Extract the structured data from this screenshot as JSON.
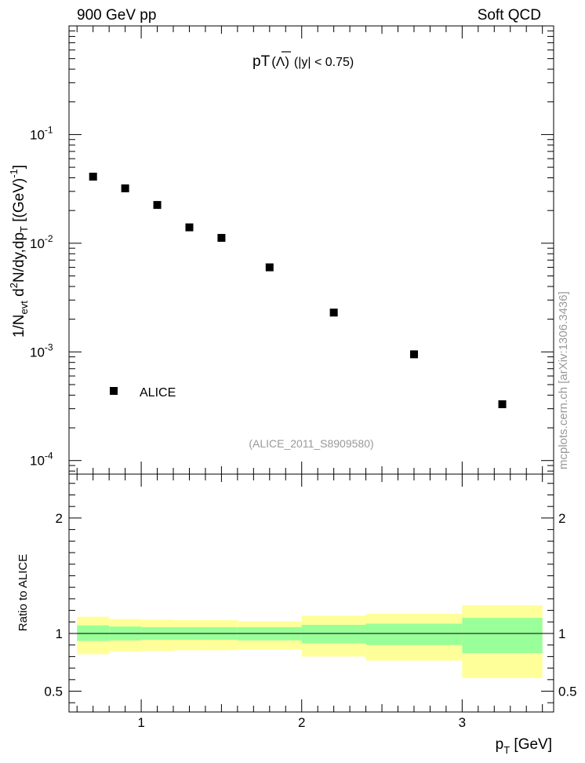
{
  "header": {
    "left_label": "900 GeV pp",
    "right_label": "Soft QCD"
  },
  "side_note": "mcplots.cern.ch [arXiv:1306.3436]",
  "chart_data": [
    {
      "type": "scatter",
      "title_main": "pT",
      "title_particle": "Λ",
      "title_cut": "(|y| < 0.75)",
      "ylabel": "1/N_evt d²N/dy,dp_T [(GeV)^-1]",
      "ylabel_parts": {
        "a": "1/N",
        "b": "evt",
        "c": " d",
        "d": "2",
        "e": "N/dy,dp",
        "f": "T",
        "g": " [(GeV)",
        "h": "-1",
        "i": "]"
      },
      "yscale": "log",
      "xlim": [
        0.55,
        3.57
      ],
      "ylim": [
        7.5e-05,
        1.0
      ],
      "y_ticks": [
        {
          "value": 0.1,
          "base": "10",
          "exp": "-1"
        },
        {
          "value": 0.01,
          "base": "10",
          "exp": "-2"
        },
        {
          "value": 0.001,
          "base": "10",
          "exp": "-3"
        },
        {
          "value": 0.0001,
          "base": "10",
          "exp": "-4"
        }
      ],
      "series": [
        {
          "name": "ALICE",
          "x": [
            0.7,
            0.9,
            1.1,
            1.3,
            1.5,
            1.8,
            2.2,
            2.7,
            3.25
          ],
          "y": [
            0.041,
            0.032,
            0.0225,
            0.014,
            0.0112,
            0.006,
            0.0023,
            0.00095,
            0.00033
          ]
        }
      ],
      "legend": {
        "label": "ALICE",
        "placement": "bottom-left"
      },
      "annotation": "(ALICE_2011_S8909580)",
      "annotation_color": "#999999"
    },
    {
      "type": "area",
      "ylabel": "Ratio to ALICE",
      "xlabel": "p_T [GeV]",
      "xlabel_parts": {
        "a": "p",
        "b": "T",
        "c": " [GeV]"
      },
      "xlim": [
        0.55,
        3.57
      ],
      "ylim": [
        0.32,
        2.38
      ],
      "x_ticks": [
        {
          "value": 1,
          "label": "1"
        },
        {
          "value": 2,
          "label": "2"
        },
        {
          "value": 3,
          "label": "3"
        }
      ],
      "y_ticks": [
        {
          "value": 0.5,
          "label": "0.5"
        },
        {
          "value": 1,
          "label": "1"
        },
        {
          "value": 2,
          "label": "2"
        }
      ],
      "reference_line": 1.0,
      "bands": [
        {
          "x0": 0.6,
          "x1": 0.8,
          "stat_lo": 0.935,
          "stat_hi": 1.07,
          "sys_lo": 0.82,
          "sys_hi": 1.145
        },
        {
          "x0": 0.8,
          "x1": 1.0,
          "stat_lo": 0.94,
          "stat_hi": 1.06,
          "sys_lo": 0.845,
          "sys_hi": 1.125
        },
        {
          "x0": 1.0,
          "x1": 1.2,
          "stat_lo": 0.945,
          "stat_hi": 1.055,
          "sys_lo": 0.85,
          "sys_hi": 1.12
        },
        {
          "x0": 1.2,
          "x1": 1.4,
          "stat_lo": 0.945,
          "stat_hi": 1.055,
          "sys_lo": 0.855,
          "sys_hi": 1.115
        },
        {
          "x0": 1.4,
          "x1": 1.6,
          "stat_lo": 0.945,
          "stat_hi": 1.055,
          "sys_lo": 0.855,
          "sys_hi": 1.115
        },
        {
          "x0": 1.6,
          "x1": 2.0,
          "stat_lo": 0.94,
          "stat_hi": 1.055,
          "sys_lo": 0.86,
          "sys_hi": 1.105
        },
        {
          "x0": 2.0,
          "x1": 2.4,
          "stat_lo": 0.915,
          "stat_hi": 1.075,
          "sys_lo": 0.8,
          "sys_hi": 1.155
        },
        {
          "x0": 2.4,
          "x1": 3.0,
          "stat_lo": 0.9,
          "stat_hi": 1.085,
          "sys_lo": 0.765,
          "sys_hi": 1.17
        },
        {
          "x0": 3.0,
          "x1": 3.5,
          "stat_lo": 0.83,
          "stat_hi": 1.135,
          "sys_lo": 0.615,
          "sys_hi": 1.245
        }
      ],
      "colors": {
        "stat": "#99ff99",
        "sys": "#ffff99",
        "line": "#000000"
      }
    }
  ]
}
